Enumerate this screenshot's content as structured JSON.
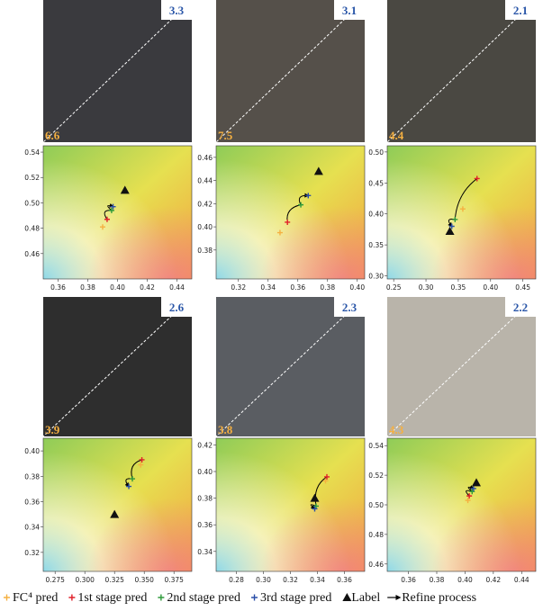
{
  "chart_data": [
    {
      "type": "scatter",
      "photo_error_ours": "3.3",
      "photo_error_fc4": "6.6",
      "xlim": [
        0.35,
        0.45
      ],
      "xticks": [
        0.36,
        0.38,
        {
          "value": 0.4,
          "label": "0.40"
        },
        0.42,
        0.44
      ],
      "ylim": [
        0.44,
        0.545
      ],
      "yticks": [
        0.46,
        0.48,
        {
          "value": 0.5,
          "label": "0.50"
        },
        0.52,
        0.54
      ],
      "series": [
        {
          "name": "FC⁴ pred",
          "color": "#f5b041",
          "marker": "plus",
          "x": [
            0.39
          ],
          "values": [
            0.481
          ]
        },
        {
          "name": "1st stage pred",
          "color": "#e0202a",
          "marker": "plus",
          "x": [
            0.393
          ],
          "values": [
            0.487
          ]
        },
        {
          "name": "2nd stage pred",
          "color": "#2e9a3a",
          "marker": "plus",
          "x": [
            0.396
          ],
          "values": [
            0.494
          ]
        },
        {
          "name": "3rd stage pred",
          "color": "#2a4ea8",
          "marker": "plus",
          "x": [
            0.397
          ],
          "values": [
            0.497
          ]
        },
        {
          "name": "Label",
          "color": "#111111",
          "marker": "triangle",
          "x": [
            0.405
          ],
          "values": [
            0.51
          ]
        }
      ]
    },
    {
      "type": "scatter",
      "photo_error_ours": "3.1",
      "photo_error_fc4": "7.5",
      "xlim": [
        0.305,
        0.405
      ],
      "xticks": [
        0.32,
        0.34,
        0.36,
        0.38,
        {
          "value": 0.4,
          "label": "0.40"
        }
      ],
      "ylim": [
        0.355,
        0.47
      ],
      "yticks": [
        0.38,
        {
          "value": 0.4,
          "label": "0.40"
        },
        0.42,
        0.44,
        0.46
      ],
      "series": [
        {
          "name": "FC⁴ pred",
          "color": "#f5b041",
          "marker": "plus",
          "x": [
            0.348
          ],
          "values": [
            0.395
          ]
        },
        {
          "name": "1st stage pred",
          "color": "#e0202a",
          "marker": "plus",
          "x": [
            0.353
          ],
          "values": [
            0.404
          ]
        },
        {
          "name": "2nd stage pred",
          "color": "#2e9a3a",
          "marker": "plus",
          "x": [
            0.362
          ],
          "values": [
            0.419
          ]
        },
        {
          "name": "3rd stage pred",
          "color": "#2a4ea8",
          "marker": "plus",
          "x": [
            0.367
          ],
          "values": [
            0.427
          ]
        },
        {
          "name": "Label",
          "color": "#111111",
          "marker": "triangle",
          "x": [
            0.374
          ],
          "values": [
            0.448
          ]
        }
      ]
    },
    {
      "type": "scatter",
      "photo_error_ours": "2.1",
      "photo_error_fc4": "4.4",
      "xlim": [
        0.24,
        0.47
      ],
      "xticks": [
        0.25,
        {
          "value": 0.3,
          "label": "0.30"
        },
        0.35,
        {
          "value": 0.4,
          "label": "0.40"
        },
        0.45
      ],
      "ylim": [
        0.295,
        0.51
      ],
      "yticks": [
        {
          "value": 0.3,
          "label": "0.30"
        },
        0.35,
        {
          "value": 0.4,
          "label": "0.40"
        },
        0.45,
        {
          "value": 0.5,
          "label": "0.50"
        }
      ],
      "series": [
        {
          "name": "FC⁴ pred",
          "color": "#f5b041",
          "marker": "plus",
          "x": [
            0.357
          ],
          "values": [
            0.408
          ]
        },
        {
          "name": "1st stage pred",
          "color": "#e0202a",
          "marker": "plus",
          "x": [
            0.379
          ],
          "values": [
            0.457
          ]
        },
        {
          "name": "2nd stage pred",
          "color": "#2e9a3a",
          "marker": "plus",
          "x": [
            0.345
          ],
          "values": [
            0.391
          ]
        },
        {
          "name": "3rd stage pred",
          "color": "#2a4ea8",
          "marker": "plus",
          "x": [
            0.34
          ],
          "values": [
            0.38
          ]
        },
        {
          "name": "Label",
          "color": "#111111",
          "marker": "triangle",
          "x": [
            0.337
          ],
          "values": [
            0.372
          ]
        }
      ]
    },
    {
      "type": "scatter",
      "photo_error_ours": "2.6",
      "photo_error_fc4": "3.9",
      "xlim": [
        0.265,
        0.39
      ],
      "xticks": [
        0.275,
        {
          "value": 0.3,
          "label": "0.300"
        },
        0.325,
        {
          "value": 0.35,
          "label": "0.350"
        },
        0.375
      ],
      "ylim": [
        0.305,
        0.41
      ],
      "yticks": [
        0.32,
        0.34,
        0.36,
        0.38,
        {
          "value": 0.4,
          "label": "0.40"
        }
      ],
      "series": [
        {
          "name": "FC⁴ pred",
          "color": "#f5b041",
          "marker": "plus",
          "x": [
            0.347
          ],
          "values": [
            0.389
          ]
        },
        {
          "name": "1st stage pred",
          "color": "#e0202a",
          "marker": "plus",
          "x": [
            0.348
          ],
          "values": [
            0.393
          ]
        },
        {
          "name": "2nd stage pred",
          "color": "#2e9a3a",
          "marker": "plus",
          "x": [
            0.34
          ],
          "values": [
            0.378
          ]
        },
        {
          "name": "3rd stage pred",
          "color": "#2a4ea8",
          "marker": "plus",
          "x": [
            0.337
          ],
          "values": [
            0.372
          ]
        },
        {
          "name": "Label",
          "color": "#111111",
          "marker": "triangle",
          "x": [
            0.325
          ],
          "values": [
            0.35
          ]
        }
      ]
    },
    {
      "type": "scatter",
      "photo_error_ours": "2.3",
      "photo_error_fc4": "3.8",
      "xlim": [
        0.265,
        0.375
      ],
      "xticks": [
        0.28,
        {
          "value": 0.3,
          "label": "0.30"
        },
        0.32,
        0.34,
        0.36
      ],
      "ylim": [
        0.325,
        0.425
      ],
      "yticks": [
        0.34,
        0.36,
        0.38,
        {
          "value": 0.4,
          "label": "0.40"
        },
        0.42
      ],
      "series": [
        {
          "name": "FC⁴ pred",
          "color": "#f5b041",
          "marker": "plus",
          "x": [
            0.346
          ],
          "values": [
            0.393
          ]
        },
        {
          "name": "1st stage pred",
          "color": "#e0202a",
          "marker": "plus",
          "x": [
            0.347
          ],
          "values": [
            0.396
          ]
        },
        {
          "name": "2nd stage pred",
          "color": "#2e9a3a",
          "marker": "plus",
          "x": [
            0.339
          ],
          "values": [
            0.374
          ]
        },
        {
          "name": "3rd stage pred",
          "color": "#2a4ea8",
          "marker": "plus",
          "x": [
            0.338
          ],
          "values": [
            0.372
          ]
        },
        {
          "name": "Label",
          "color": "#111111",
          "marker": "triangle",
          "x": [
            0.338
          ],
          "values": [
            0.38
          ]
        }
      ]
    },
    {
      "type": "scatter",
      "photo_error_ours": "2.2",
      "photo_error_fc4": "4.3",
      "xlim": [
        0.345,
        0.45
      ],
      "xticks": [
        0.36,
        0.38,
        {
          "value": 0.4,
          "label": "0.40"
        },
        0.42,
        0.44
      ],
      "ylim": [
        0.455,
        0.545
      ],
      "yticks": [
        0.46,
        0.48,
        {
          "value": 0.5,
          "label": "0.50"
        },
        0.52,
        0.54
      ],
      "series": [
        {
          "name": "FC⁴ pred",
          "color": "#f5b041",
          "marker": "plus",
          "x": [
            0.402
          ],
          "values": [
            0.503
          ]
        },
        {
          "name": "1st stage pred",
          "color": "#e0202a",
          "marker": "plus",
          "x": [
            0.403
          ],
          "values": [
            0.506
          ]
        },
        {
          "name": "2nd stage pred",
          "color": "#2e9a3a",
          "marker": "plus",
          "x": [
            0.405
          ],
          "values": [
            0.509
          ]
        },
        {
          "name": "3rd stage pred",
          "color": "#2a4ea8",
          "marker": "plus",
          "x": [
            0.406
          ],
          "values": [
            0.511
          ]
        },
        {
          "name": "Label",
          "color": "#111111",
          "marker": "triangle",
          "x": [
            0.408
          ],
          "values": [
            0.515
          ]
        }
      ]
    }
  ],
  "legend_refine": "Refine process"
}
